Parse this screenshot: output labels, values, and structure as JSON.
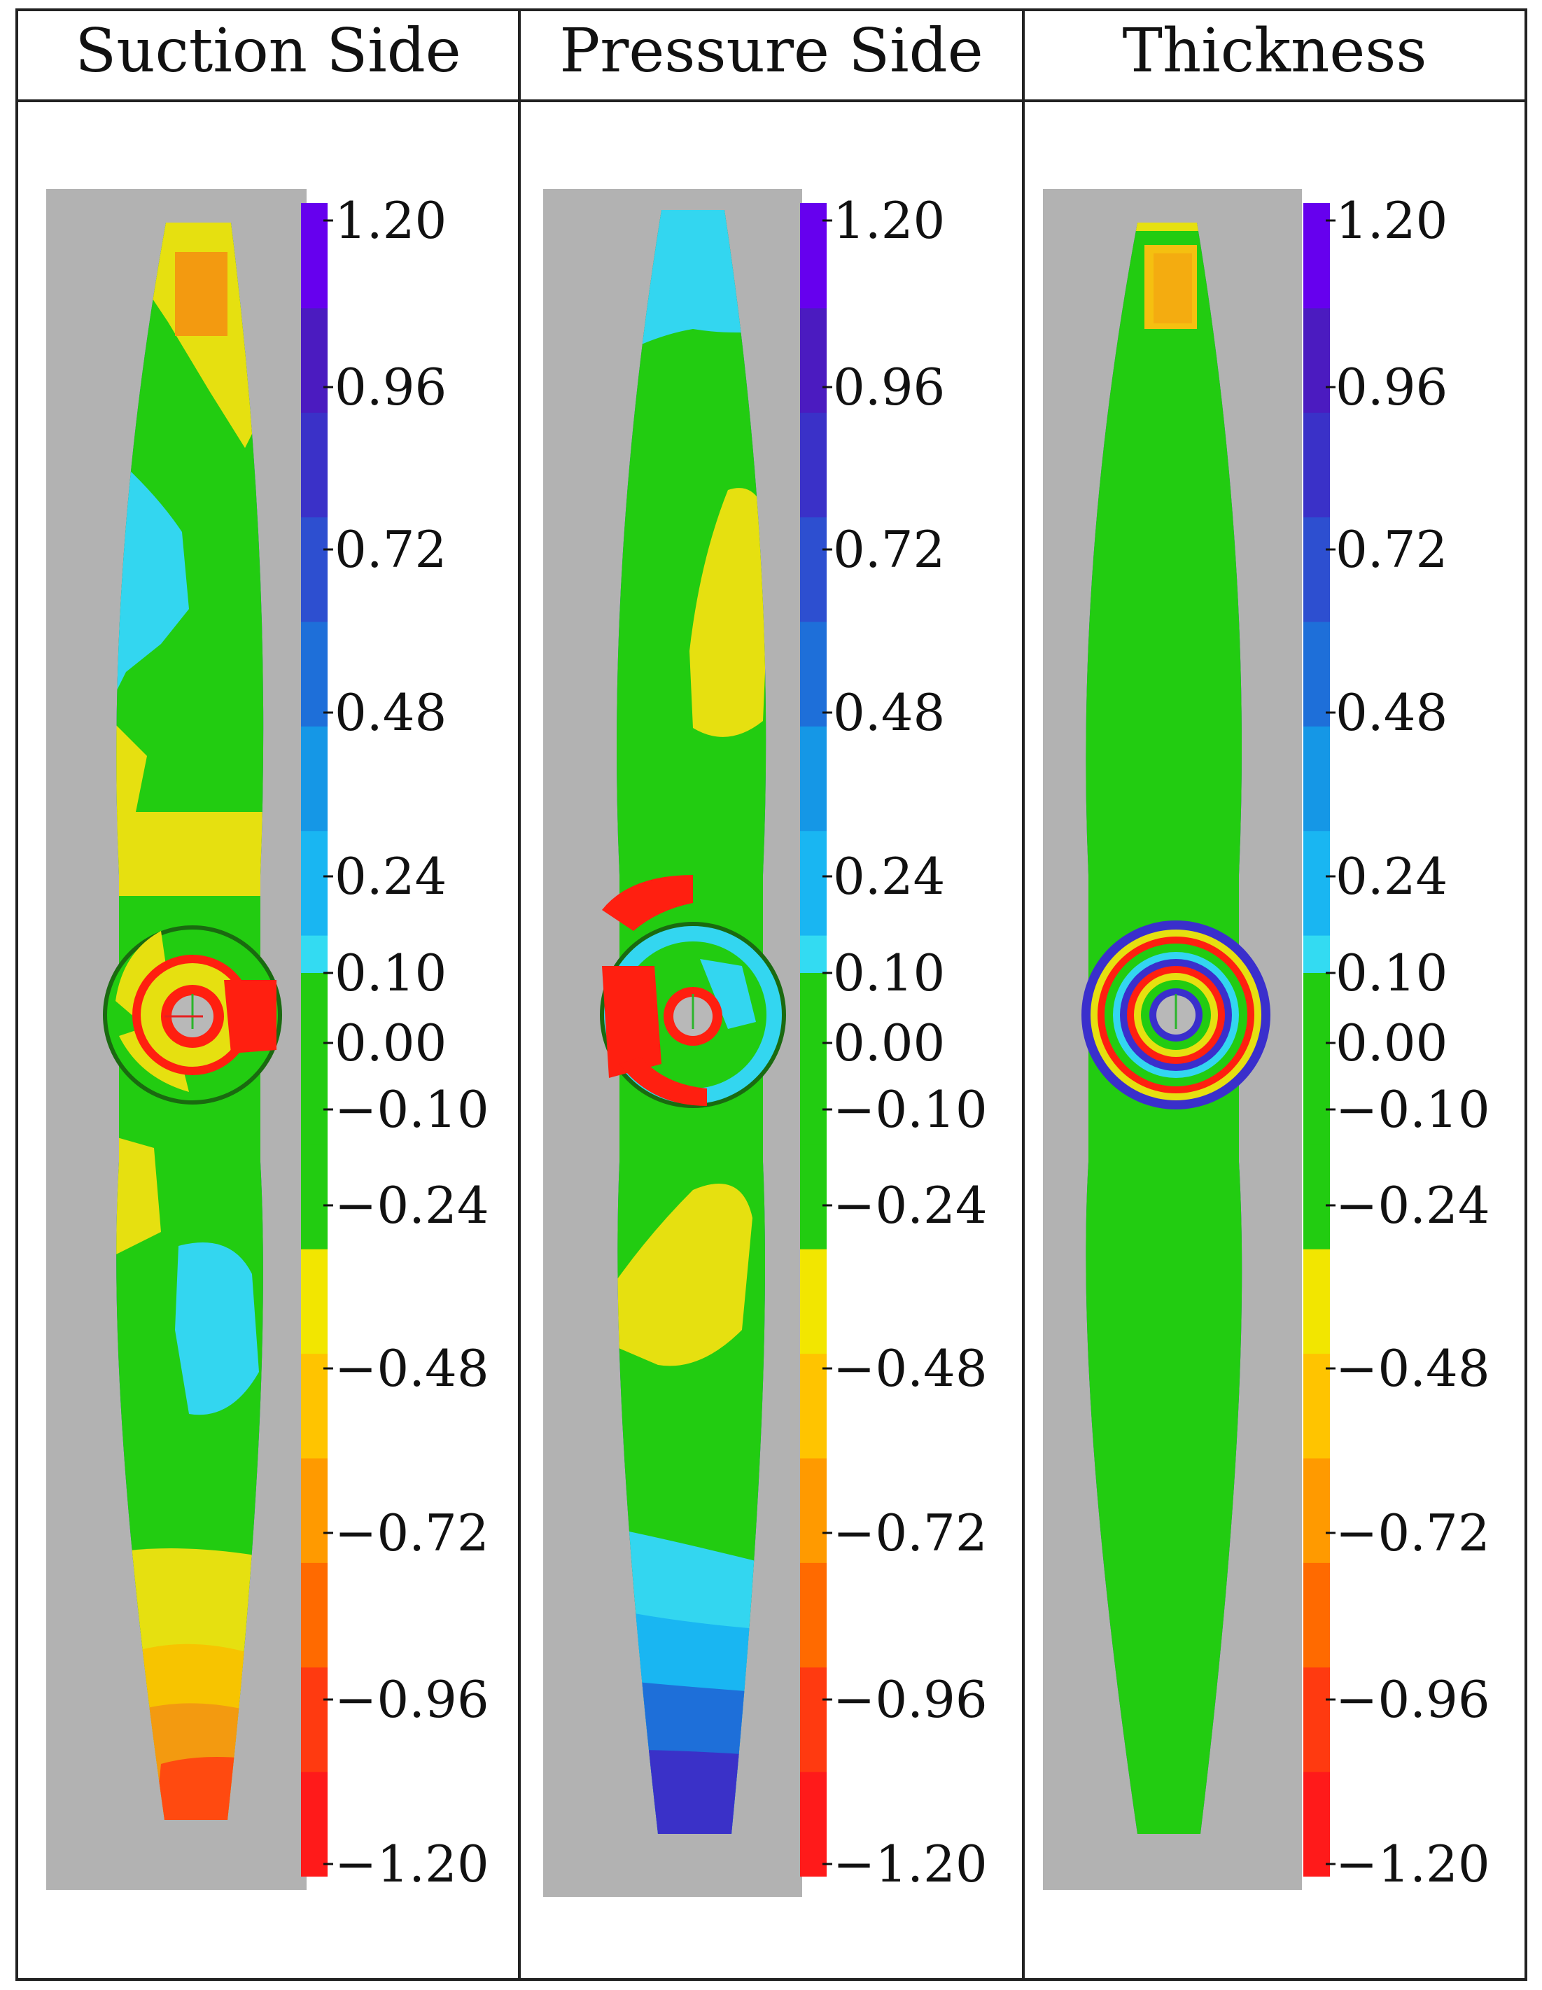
{
  "headers": [
    "Suction Side",
    "Pressure Side",
    "Thickness"
  ],
  "colorbar": {
    "ticks": [
      "1.20",
      "0.96",
      "0.72",
      "0.48",
      "0.24",
      "0.10",
      "0.00",
      "−0.10",
      "−0.24",
      "−0.48",
      "−0.72",
      "−0.96",
      "−1.20"
    ],
    "range": [
      -1.2,
      1.2
    ],
    "colors": [
      "#ff1a1a",
      "#ff3a10",
      "#ff6a00",
      "#ff9a00",
      "#ffc400",
      "#f2e600",
      "#22cc11",
      "#22cc11",
      "#33dbf2",
      "#19b6f2",
      "#1597e6",
      "#1e6fd9",
      "#2d4fd0",
      "#3a31c8",
      "#4b1bc0",
      "#6600ee"
    ]
  },
  "colors": {
    "background": "#b2b2b2",
    "green": "#22cc11",
    "yellow": "#e6e010",
    "orange": "#f39a10",
    "cyan": "#33d6f0",
    "blue": "#2a6fe0",
    "deep_blue": "#3a2fcc",
    "red": "#ff1f10"
  }
}
